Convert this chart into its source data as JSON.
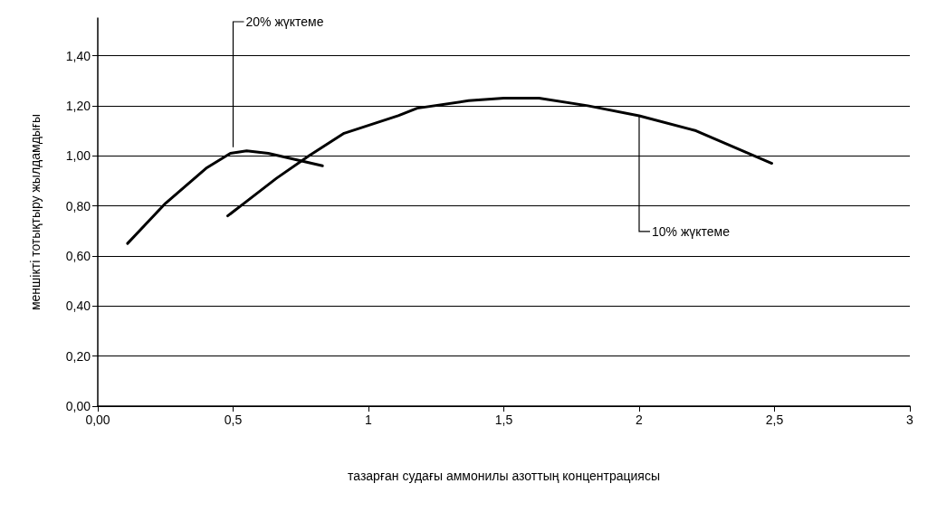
{
  "chart_data": {
    "type": "line",
    "xlabel": "тазарған судағы аммонилы азоттың концентрациясы",
    "ylabel": "меншікті тотықтыру жылдамдығы",
    "series": [
      {
        "color": "#000000",
        "x": [
          0.11,
          0.25,
          0.4,
          0.49,
          0.55,
          0.63,
          0.71,
          0.83
        ],
        "values": [
          0.65,
          0.81,
          0.95,
          1.01,
          1.02,
          1.01,
          0.99,
          0.96
        ]
      },
      {
        "color": "#000000",
        "x": [
          0.48,
          0.54,
          0.66,
          0.78,
          0.91,
          1.11,
          1.18,
          1.37,
          1.5,
          1.63,
          1.81,
          2.0,
          2.21,
          2.49
        ],
        "values": [
          0.76,
          0.81,
          0.91,
          1.0,
          1.09,
          1.16,
          1.19,
          1.22,
          1.23,
          1.23,
          1.2,
          1.16,
          1.1,
          0.97
        ]
      }
    ],
    "annotations": [
      {
        "text": "20% жүктеме",
        "x": 0.5,
        "y": 1.02
      },
      {
        "text": "10% жүктеме",
        "x": 2.0,
        "y": 1.16
      }
    ],
    "xlim": [
      0,
      3
    ],
    "ylim": [
      0,
      1.55
    ],
    "xticks": [
      {
        "value": 0,
        "label": "0,00"
      },
      {
        "value": 0.5,
        "label": "0,5"
      },
      1,
      {
        "value": 1.5,
        "label": "1,5"
      },
      2,
      {
        "value": 2.5,
        "label": "2,5"
      },
      3
    ],
    "yticks": [
      {
        "value": 0,
        "label": "0,00"
      },
      {
        "value": 0.2,
        "label": "0,20"
      },
      {
        "value": 0.4,
        "label": "0,40"
      },
      {
        "value": 0.6,
        "label": "0,60"
      },
      {
        "value": 0.8,
        "label": "0,80"
      },
      {
        "value": 1.0,
        "label": "1,00"
      },
      {
        "value": 1.2,
        "label": "1,20"
      },
      {
        "value": 1.4,
        "label": "1,40"
      }
    ],
    "grid": "y",
    "marker": "none",
    "line_style": "solid"
  }
}
